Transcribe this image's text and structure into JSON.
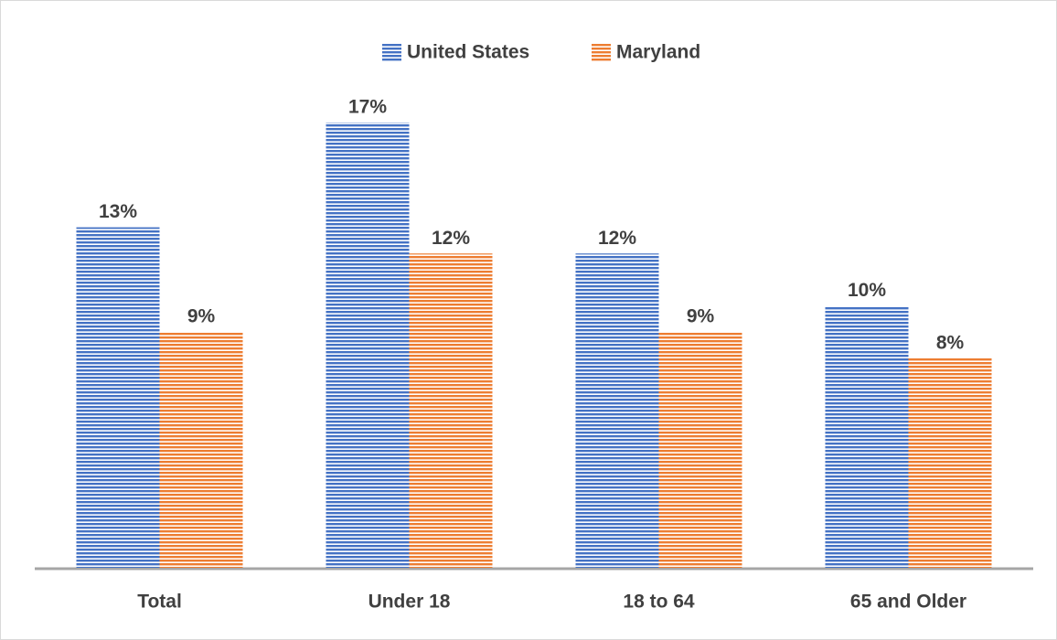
{
  "chart_data": {
    "type": "bar",
    "categories": [
      "Total",
      "Under 18",
      "18 to 64",
      "65 and Older"
    ],
    "series": [
      {
        "name": "United States",
        "color": "#4472c4",
        "values": [
          13,
          17,
          12,
          10
        ],
        "value_labels": [
          "13%",
          "17%",
          "12%",
          "10%"
        ]
      },
      {
        "name": "Maryland",
        "color": "#ed7d31",
        "values": [
          9,
          12,
          9,
          8
        ],
        "value_labels": [
          "9%",
          "12%",
          "9%",
          "8%"
        ]
      }
    ]
  }
}
